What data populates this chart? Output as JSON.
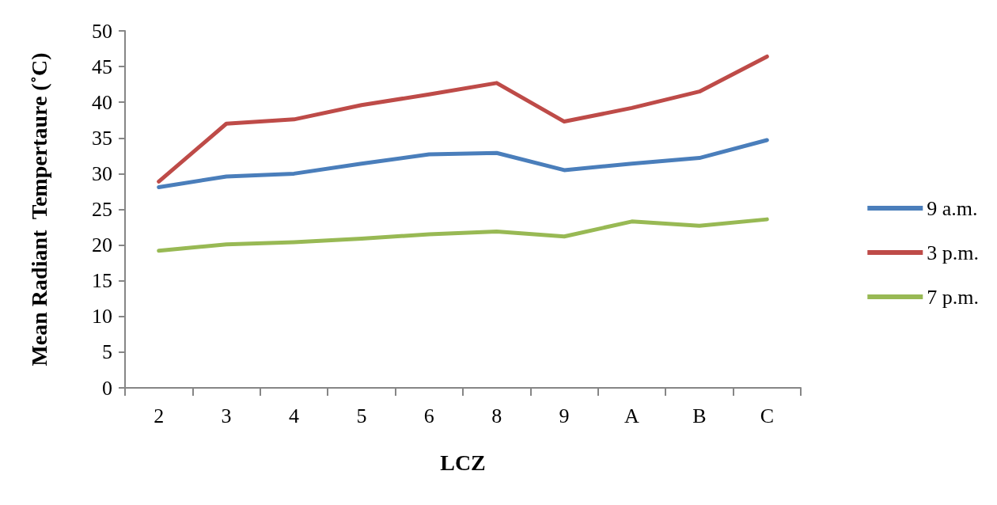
{
  "chart_data": {
    "type": "line",
    "xlabel": "LCZ",
    "ylabel": "Mean Radiant  Tempertaure (˚C)",
    "categories": [
      "2",
      "3",
      "4",
      "5",
      "6",
      "8",
      "9",
      "A",
      "B",
      "C"
    ],
    "series": [
      {
        "name": "9 a.m.",
        "color": "#4a7ebb",
        "values": [
          28.1,
          29.6,
          30.0,
          31.4,
          32.7,
          32.9,
          30.5,
          31.4,
          32.2,
          34.7
        ]
      },
      {
        "name": "3 p.m.",
        "color": "#be4b48",
        "values": [
          28.9,
          37.0,
          37.6,
          39.6,
          41.1,
          42.7,
          37.3,
          39.2,
          41.5,
          46.4
        ]
      },
      {
        "name": "7 p.m.",
        "color": "#98b954",
        "values": [
          19.2,
          20.1,
          20.4,
          20.9,
          21.5,
          21.9,
          21.2,
          23.3,
          22.7,
          23.6
        ]
      }
    ],
    "ylim": [
      0,
      50
    ],
    "yticks": [
      0,
      5,
      10,
      15,
      20,
      25,
      30,
      35,
      40,
      45,
      50
    ],
    "grid": false,
    "legend": "right",
    "marker": "none",
    "line_style": "solid"
  }
}
